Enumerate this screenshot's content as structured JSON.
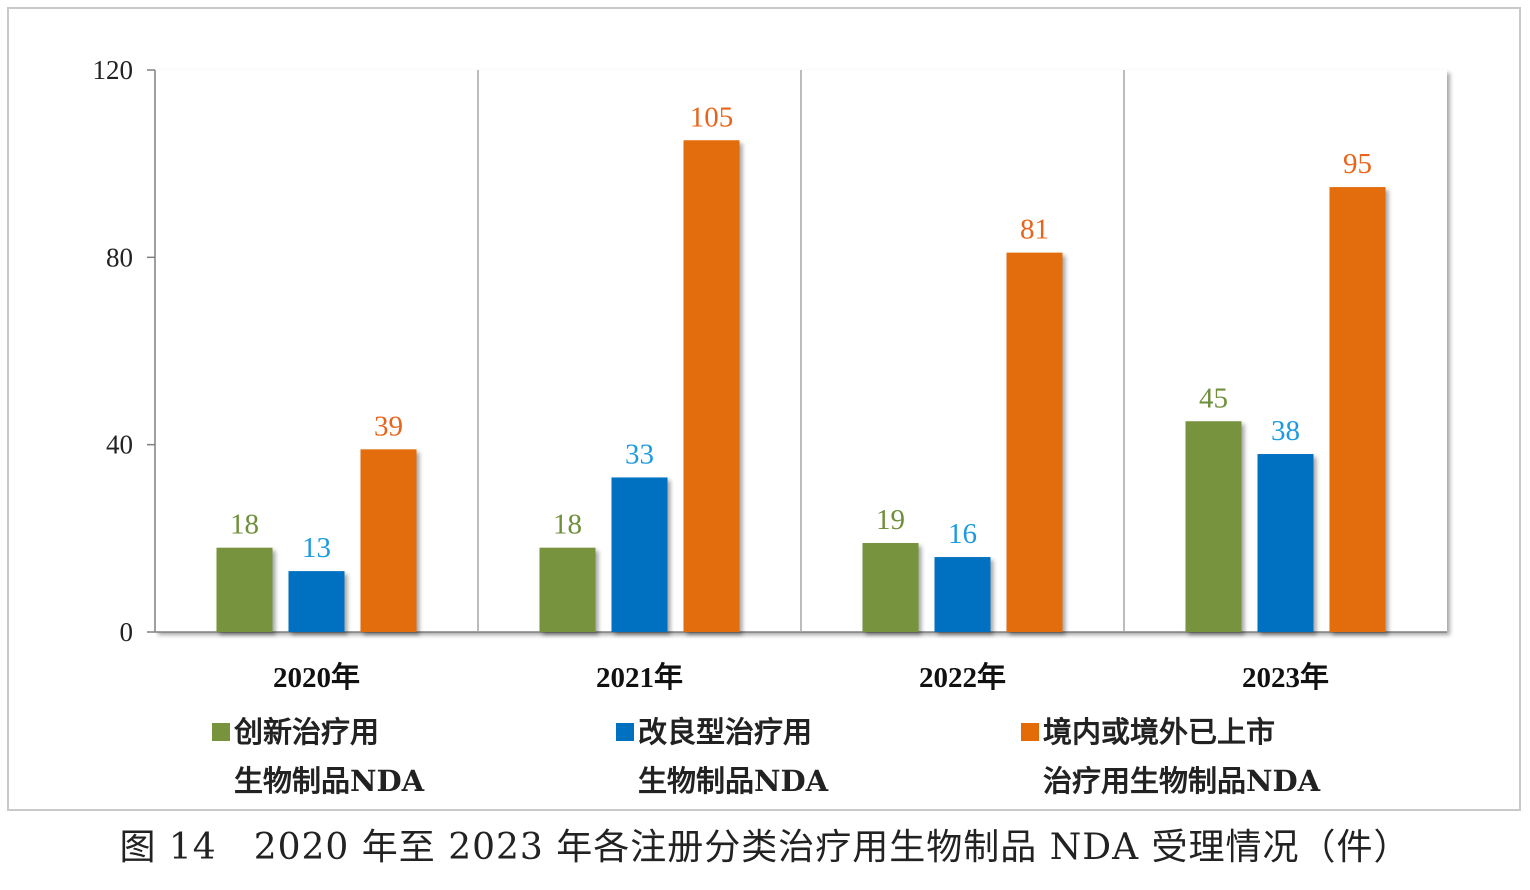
{
  "chart_data": {
    "type": "bar",
    "categories": [
      "2020年",
      "2021年",
      "2022年",
      "2023年"
    ],
    "series": [
      {
        "name": "创新治疗用生物制品NDA",
        "legend_lines": [
          "创新治疗用",
          "生物制品NDA"
        ],
        "color": "#77933c",
        "label_color": "#6f8f3a",
        "values": [
          18,
          18,
          19,
          45
        ]
      },
      {
        "name": "改良型治疗用生物制品NDA",
        "legend_lines": [
          "改良型治疗用",
          "生物制品NDA"
        ],
        "color": "#0070c0",
        "label_color": "#1e9be0",
        "values": [
          13,
          33,
          16,
          38
        ]
      },
      {
        "name": "境内或境外已上市治疗用生物制品NDA",
        "legend_lines": [
          "境内或境外已上市",
          "治疗用生物制品NDA"
        ],
        "color": "#e36c09",
        "label_color": "#e8641a",
        "values": [
          39,
          105,
          81,
          95
        ]
      }
    ],
    "yticks": [
      "0",
      "40",
      "80",
      "120"
    ],
    "ylim": [
      0,
      120
    ],
    "grid": false,
    "category_separators": true,
    "legend_position": "bottom",
    "title": "图 14　2020 年至 2023 年各注册分类治疗用生物制品 NDA 受理情况（件）"
  }
}
